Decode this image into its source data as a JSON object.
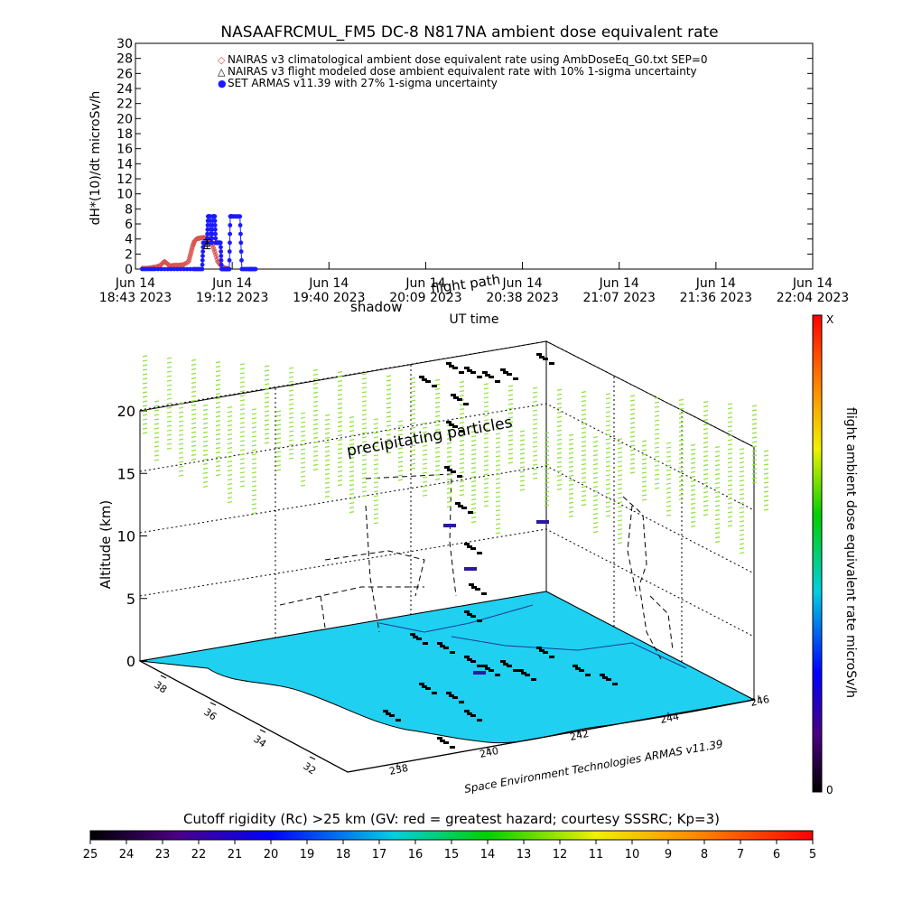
{
  "chart_data": [
    {
      "type": "line",
      "title": "NASAAFRCMUL_FM5 DC-8   N817NA ambient dose equivalent rate",
      "ylabel": "dH*(10)/dt microSv/h",
      "xlabel": "UT time",
      "ylim": [
        0,
        30
      ],
      "yticks": [
        0,
        2,
        4,
        6,
        8,
        10,
        12,
        14,
        16,
        18,
        20,
        22,
        24,
        26,
        28,
        30
      ],
      "xticks": [
        {
          "day": "Jun 14",
          "time": "18:43 2023"
        },
        {
          "day": "Jun 14",
          "time": "19:12 2023"
        },
        {
          "day": "Jun 14",
          "time": "19:40 2023"
        },
        {
          "day": "Jun 14",
          "time": "20:09 2023"
        },
        {
          "day": "Jun 14",
          "time": "20:38 2023"
        },
        {
          "day": "Jun 14",
          "time": "21:07 2023"
        },
        {
          "day": "Jun 14",
          "time": "21:36 2023"
        },
        {
          "day": "Jun 14",
          "time": "22:04 2023"
        }
      ],
      "legend": [
        {
          "symbol": "◇",
          "label": "NAIRAS v3 climatological ambient dose equivalent rate using AmbDoseEq_G0.txt SEP=0",
          "color": "#d9534f"
        },
        {
          "symbol": "△",
          "label": "NAIRAS v3 flight modeled dose ambient equivalent rate with 10% 1-sigma uncertainty",
          "color": "#000000"
        },
        {
          "symbol": "●",
          "label": "SET ARMAS v11.39 with 27% 1-sigma uncertainty",
          "color": "#1a1aff"
        }
      ],
      "series": [
        {
          "name": "NAIRAS v3 climatological ambient dose equivalent rate using AmbDoseEq_G0.txt SEP=0",
          "x": [
            0.07,
            0.12,
            0.17,
            0.22,
            0.26,
            0.28,
            0.3,
            0.32,
            0.34,
            0.36,
            0.4,
            0.45,
            0.5,
            0.55,
            0.57,
            0.59,
            0.61,
            0.63,
            0.66,
            0.7,
            0.74,
            0.77,
            0.79,
            0.82,
            0.85,
            0.88,
            0.9,
            0.93,
            0.96
          ],
          "y": [
            0.1,
            0.1,
            0.2,
            0.3,
            0.5,
            0.8,
            1.0,
            0.8,
            0.6,
            0.4,
            0.5,
            0.5,
            0.6,
            1.0,
            2.0,
            3.0,
            3.7,
            4.0,
            4.1,
            4.2,
            4.1,
            4.0,
            3.5,
            2.3,
            1.0,
            0.5,
            0.3,
            0.1,
            0.1
          ]
        },
        {
          "name": "SET ARMAS v11.39 with 27% 1-sigma uncertainty",
          "x": [
            0.07,
            0.2,
            0.4,
            0.6,
            0.69,
            0.7,
            0.74,
            0.75,
            0.77,
            0.78,
            0.79,
            0.8,
            0.82,
            0.83,
            0.85,
            0.86,
            0.88,
            0.89,
            0.93,
            0.95,
            0.97,
            0.98,
            1.0,
            1.08,
            1.1,
            1.18,
            1.2,
            1.25
          ],
          "y": [
            0.0,
            0.0,
            0.0,
            0.0,
            0.0,
            3.5,
            3.5,
            7.0,
            7.0,
            3.5,
            3.5,
            7.0,
            7.0,
            3.5,
            3.5,
            3.5,
            3.5,
            0.0,
            0.0,
            0.0,
            0.0,
            7.0,
            7.0,
            7.0,
            0.0,
            0.0,
            0.0,
            0.0
          ]
        },
        {
          "name": "NAIRAS v3 flight modeled dose ambient equivalent rate with 10% 1-sigma uncertainty",
          "x": [
            0.74
          ],
          "y": [
            3.3
          ],
          "yerr": [
            0.6
          ]
        }
      ]
    },
    {
      "type": "scatter",
      "zlabel": "Altitude (km)",
      "zticks": [
        "0",
        "5",
        "10",
        "15",
        "20"
      ],
      "lat_ticks": [
        "38",
        "36",
        "34",
        "32"
      ],
      "lon_ticks": [
        "238",
        "240",
        "242",
        "244",
        "246"
      ],
      "annotations": [
        "precipitating particles",
        "shadow",
        "flight path",
        "Space Environment Technologies ARMAS v11.39"
      ],
      "colorbar": {
        "label": "flight ambient dose equivalent rate microSv/h",
        "top": "X",
        "bottom": "0"
      },
      "rigidity_bar": {
        "title": "Cutoff rigidity (Rc) >25 km (GV: red = greatest hazard; courtesy SSSRC; Kp=3)",
        "ticks": [
          "25",
          "24",
          "23",
          "22",
          "21",
          "20",
          "19",
          "18",
          "17",
          "16",
          "15",
          "14",
          "13",
          "12",
          "11",
          "10",
          "9",
          "8",
          "7",
          "6",
          "5"
        ]
      },
      "colors": {
        "surface": "#1fd0f0",
        "particles": "#8ee23a",
        "track": "#000000"
      }
    }
  ]
}
